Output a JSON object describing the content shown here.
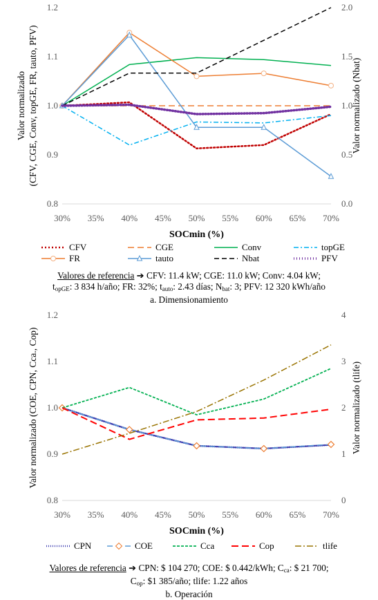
{
  "chart_data": [
    {
      "type": "line",
      "xlabel": "SOCmin (%)",
      "ylabel": [
        "Valor normalizado",
        "(CFV, CGE, Conv, topGE, FR, tauto, PFV)"
      ],
      "y2label": "Valor normalizado (Nbat)",
      "categories": [
        "30%",
        "35%",
        "40%",
        "45%",
        "50%",
        "55%",
        "60%",
        "65%",
        "70%"
      ],
      "x": [
        30,
        40,
        50,
        60,
        70
      ],
      "ylim": [
        0.8,
        1.2
      ],
      "yticks": [
        "0.8",
        "0.9",
        "1.0",
        "1.1",
        "1.2"
      ],
      "y2lim": [
        0.0,
        2.0
      ],
      "y2ticks": [
        "0.0",
        "0.5",
        "1.0",
        "1.5",
        "2.0"
      ],
      "grid": false,
      "legend_position": "bottom",
      "series": [
        {
          "name": "CFV",
          "axis": "left",
          "color": "#c00000",
          "dash": "2,3",
          "width": 2.5,
          "marker": "none",
          "values": [
            1.0,
            1.007,
            0.913,
            0.92,
            0.983
          ]
        },
        {
          "name": "CGE",
          "axis": "left",
          "color": "#ed7d31",
          "dash": "9,5",
          "width": 1.5,
          "marker": "none",
          "values": [
            1.0,
            1.0,
            1.0,
            1.0,
            1.0
          ]
        },
        {
          "name": "Conv",
          "axis": "left",
          "color": "#00b050",
          "dash": "",
          "width": 1.5,
          "marker": "none",
          "values": [
            1.0,
            1.084,
            1.098,
            1.094,
            1.082
          ]
        },
        {
          "name": "topGE",
          "axis": "left",
          "color": "#00b0f0",
          "dash": "7,3,2,3",
          "width": 1.5,
          "marker": "none",
          "values": [
            1.0,
            0.92,
            0.967,
            0.965,
            0.98
          ]
        },
        {
          "name": "FR",
          "axis": "left",
          "color": "#ed7d31",
          "dash": "",
          "width": 1.5,
          "marker": "circle",
          "values": [
            1.0,
            1.149,
            1.06,
            1.066,
            1.041
          ]
        },
        {
          "name": "tauto",
          "axis": "left",
          "color": "#5b9bd5",
          "dash": "",
          "width": 1.5,
          "marker": "triangle",
          "values": [
            1.0,
            1.144,
            0.956,
            0.956,
            0.856
          ]
        },
        {
          "name": "Nbat",
          "axis": "right",
          "color": "#000000",
          "dash": "7,4",
          "width": 1.5,
          "marker": "none",
          "values": [
            1.0,
            1.333,
            1.333,
            1.667,
            2.0
          ]
        },
        {
          "name": "PFV",
          "axis": "left",
          "color": "#7030a0",
          "dash": "1,3",
          "width": 3.5,
          "marker": "none",
          "values": [
            1.0,
            1.002,
            0.983,
            0.985,
            0.998
          ]
        }
      ],
      "reference": {
        "prefix": "Valores de referencia",
        "arrow": "➔",
        "line1": "CFV: 11.4 kW; CGE: 11.0 kW; Conv: 4.04 kW;",
        "t_label": "t",
        "t_sub": "opGE",
        "t_val": ": 3 834 h/año; FR: 32%; t",
        "tauto_sub": "auto",
        "tauto_val": ": 2.43 días; N",
        "nbat_sub": "bat",
        "nbat_val": ": 3; PFV: 12 320 kWh/año",
        "caption": "a. Dimensionamiento"
      }
    },
    {
      "type": "line",
      "xlabel": "SOCmin (%)",
      "ylabel": [
        "Valor normalizado (COE, CPN, Cca., Cop)"
      ],
      "y2label": "Valor normalizado (tlife)",
      "categories": [
        "30%",
        "35%",
        "40%",
        "45%",
        "50%",
        "55%",
        "60%",
        "65%",
        "70%"
      ],
      "x": [
        30,
        40,
        50,
        60,
        70
      ],
      "ylim": [
        0.8,
        1.2
      ],
      "yticks": [
        "0.8",
        "0.9",
        "1.0",
        "1.1",
        "1.2"
      ],
      "y2lim": [
        0,
        4
      ],
      "y2ticks": [
        "0",
        "1",
        "2",
        "3",
        "4"
      ],
      "grid": false,
      "legend_position": "bottom",
      "series": [
        {
          "name": "CPN",
          "axis": "left",
          "color": "#3f3fb0",
          "dash": "1,2",
          "width": 2.5,
          "marker": "none",
          "values": [
            1.0,
            0.953,
            0.918,
            0.912,
            0.92
          ]
        },
        {
          "name": "COE",
          "axis": "left",
          "color": "#5b9bd5",
          "dash": "8,5",
          "width": 1.5,
          "marker": "diamond",
          "values": [
            1.0,
            0.953,
            0.918,
            0.912,
            0.921
          ]
        },
        {
          "name": "Cca",
          "axis": "left",
          "color": "#00b050",
          "dash": "4,2",
          "width": 1.8,
          "marker": "none",
          "values": [
            1.0,
            1.044,
            0.985,
            1.019,
            1.085
          ]
        },
        {
          "name": "Cop",
          "axis": "left",
          "color": "#ff0000",
          "dash": "10,5",
          "width": 2.0,
          "marker": "none",
          "values": [
            1.0,
            0.932,
            0.974,
            0.978,
            0.997
          ]
        },
        {
          "name": "tlife",
          "axis": "right",
          "color": "#997300",
          "dash": "9,3,2,3",
          "width": 1.5,
          "marker": "none",
          "values": [
            1.0,
            1.45,
            1.92,
            2.6,
            3.36
          ]
        }
      ],
      "reference": {
        "prefix": "Valores de referencia",
        "arrow": "➔",
        "line1": "CPN: $ 104 270; COE: $ 0.442/kWh; C",
        "cca_sub": "ca",
        "cca_val": ": $ 21 700;",
        "cop_label": "C",
        "cop_sub": "op",
        "cop_val": ": $1 385/año; tlife: 1.22 años",
        "caption": "b. Operación"
      }
    }
  ]
}
